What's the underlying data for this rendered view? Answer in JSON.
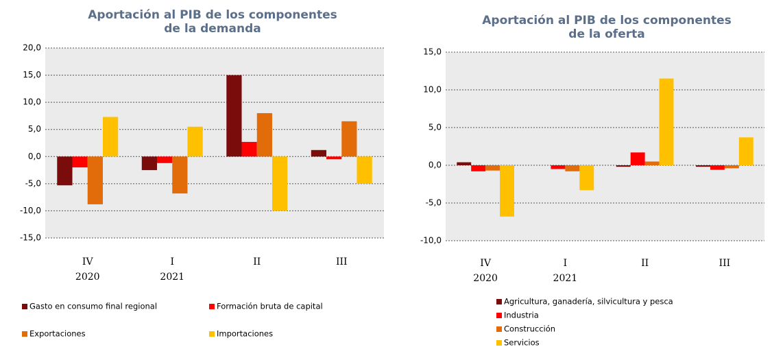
{
  "chart_data": [
    {
      "type": "bar",
      "title": [
        "Aportación al PIB de los componentes",
        "de la demanda"
      ],
      "categories": [
        [
          "IV",
          "2020"
        ],
        [
          "I",
          "2021"
        ],
        [
          "II"
        ],
        [
          "III"
        ]
      ],
      "series": [
        {
          "name": "Gasto en consumo final regional",
          "color": "#7b0c0c",
          "values": [
            -5.3,
            -2.5,
            15.0,
            1.2
          ]
        },
        {
          "name": "Formación bruta de capital",
          "color": "#ff0000",
          "values": [
            -2.0,
            -1.2,
            2.7,
            -0.5
          ]
        },
        {
          "name": "Exportaciones",
          "color": "#e36c0a",
          "values": [
            -8.8,
            -6.8,
            8.0,
            6.5
          ]
        },
        {
          "name": "Importaciones",
          "color": "#ffc000",
          "values": [
            7.3,
            5.5,
            -10.0,
            -5.0
          ]
        }
      ],
      "ylim": [
        -15,
        20
      ],
      "yticks": [
        {
          "value": -15,
          "label": "-15,0"
        },
        {
          "value": -10,
          "label": "-10,0"
        },
        {
          "value": -5,
          "label": "-5,0"
        },
        {
          "value": 0,
          "label": "0,0"
        },
        {
          "value": 5,
          "label": "5,0"
        },
        {
          "value": 10,
          "label": "10,0"
        },
        {
          "value": 15,
          "label": "15,0"
        },
        {
          "value": 20,
          "label": "20,0"
        }
      ],
      "grid": true
    },
    {
      "type": "bar",
      "title": [
        "Aportación al PIB de los componentes",
        "de la oferta"
      ],
      "categories": [
        [
          "IV",
          "2020"
        ],
        [
          "I",
          "2021"
        ],
        [
          "II"
        ],
        [
          "III"
        ]
      ],
      "series": [
        {
          "name": "Agricultura, ganadería, silvicultura y pesca",
          "color": "#7b0c0c",
          "values": [
            0.4,
            0.0,
            -0.2,
            -0.2
          ]
        },
        {
          "name": "Industria",
          "color": "#ff0000",
          "values": [
            -0.8,
            -0.5,
            1.7,
            -0.6
          ]
        },
        {
          "name": "Construcción",
          "color": "#e36c0a",
          "values": [
            -0.7,
            -0.8,
            0.5,
            -0.4
          ]
        },
        {
          "name": "Servicios",
          "color": "#ffc000",
          "values": [
            -6.8,
            -3.3,
            11.5,
            3.7
          ]
        }
      ],
      "ylim": [
        -10,
        15
      ],
      "yticks": [
        {
          "value": -10,
          "label": "-10,0"
        },
        {
          "value": -5,
          "label": "-5,0"
        },
        {
          "value": 0,
          "label": "0,0"
        },
        {
          "value": 5,
          "label": "5,0"
        },
        {
          "value": 10,
          "label": "10,0"
        },
        {
          "value": 15,
          "label": "15,0"
        }
      ],
      "grid": true
    }
  ]
}
